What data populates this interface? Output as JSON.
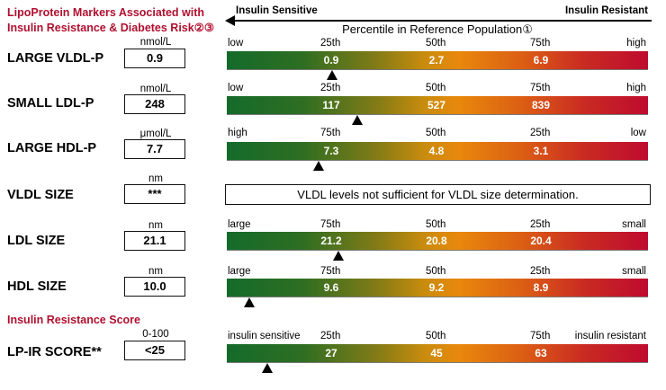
{
  "header": {
    "title_line1": "LipoProtein Markers Associated with",
    "title_line2": "Insulin Resistance & Diabetes Risk②③",
    "axis_left": "Insulin Sensitive",
    "axis_right": "Insulin Resistant",
    "percentile_title": "Percentile in Reference Population①"
  },
  "section2_title": "Insulin Resistance Score",
  "vldl_note": "VLDL levels not sufficient for VLDL size determination.",
  "chart_data": {
    "type": "table",
    "title": "LipoProtein Markers Associated with Insulin Resistance & Diabetes Risk",
    "rows": [
      {
        "name": "LARGE VLDL-P",
        "unit": "nmol/L",
        "value": "0.9",
        "left_label": "low",
        "right_label": "high",
        "ticks": [
          {
            "pct": "25th",
            "value": "0.9"
          },
          {
            "pct": "50th",
            "value": "2.7"
          },
          {
            "pct": "75th",
            "value": "6.9"
          }
        ],
        "marker_position": 0.25
      },
      {
        "name": "SMALL LDL-P",
        "unit": "nmol/L",
        "value": "248",
        "left_label": "low",
        "right_label": "high",
        "ticks": [
          {
            "pct": "25th",
            "value": "117"
          },
          {
            "pct": "50th",
            "value": "527"
          },
          {
            "pct": "75th",
            "value": "839"
          }
        ],
        "marker_position": 0.31
      },
      {
        "name": "LARGE HDL-P",
        "unit": "μmol/L",
        "value": "7.7",
        "left_label": "high",
        "right_label": "low",
        "ticks": [
          {
            "pct": "75th",
            "value": "7.3"
          },
          {
            "pct": "50th",
            "value": "4.8"
          },
          {
            "pct": "25th",
            "value": "3.1"
          }
        ],
        "marker_position": 0.218
      },
      {
        "name": "VLDL SIZE",
        "unit": "nm",
        "value": "***"
      },
      {
        "name": "LDL SIZE",
        "unit": "nm",
        "value": "21.1",
        "left_label": "large",
        "right_label": "small",
        "ticks": [
          {
            "pct": "75th",
            "value": "21.2"
          },
          {
            "pct": "50th",
            "value": "20.8"
          },
          {
            "pct": "25th",
            "value": "20.4"
          }
        ],
        "marker_position": 0.265
      },
      {
        "name": "HDL SIZE",
        "unit": "nm",
        "value": "10.0",
        "left_label": "large",
        "right_label": "small",
        "ticks": [
          {
            "pct": "75th",
            "value": "9.6"
          },
          {
            "pct": "50th",
            "value": "9.2"
          },
          {
            "pct": "25th",
            "value": "8.9"
          }
        ],
        "marker_position": 0.053
      },
      {
        "name": "LP-IR SCORE**",
        "unit": "0-100",
        "value": "<25",
        "left_label": "insulin sensitive",
        "right_label": "insulin resistant",
        "ticks": [
          {
            "pct": "25th",
            "value": "27"
          },
          {
            "pct": "50th",
            "value": "45"
          },
          {
            "pct": "75th",
            "value": "63"
          }
        ],
        "marker_position": 0.096
      }
    ],
    "colors": {
      "low_risk": "#146b2b",
      "mid": "#e8880c",
      "high_risk": "#be0b2f",
      "title": "#b0102f"
    }
  }
}
